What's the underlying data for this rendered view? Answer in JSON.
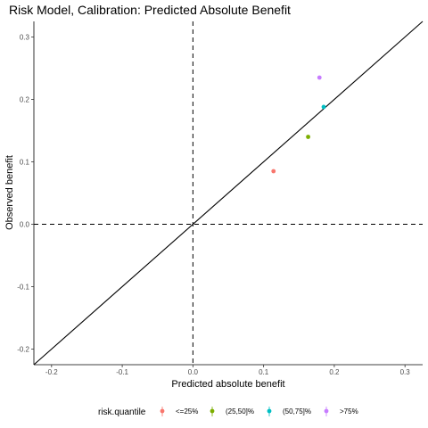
{
  "chart_data": {
    "type": "scatter",
    "title": "Risk Model, Calibration: Predicted Absolute Benefit",
    "xlabel": "Predicted absolute benefit",
    "ylabel": "Observed benefit",
    "xlim": [
      -0.225,
      0.325
    ],
    "ylim": [
      -0.225,
      0.325
    ],
    "x_ticks": [
      -0.2,
      -0.1,
      0.0,
      0.1,
      0.2,
      0.3
    ],
    "x_tick_labels": [
      "-0.2",
      "-0.1",
      "0.0",
      "0.1",
      "0.2",
      "0.3"
    ],
    "y_ticks": [
      -0.2,
      -0.1,
      0.0,
      0.1,
      0.2,
      0.3
    ],
    "y_tick_labels": [
      "-0.2",
      "-0.1",
      "0.0",
      "0.1",
      "0.2",
      "0.3"
    ],
    "grid": false,
    "reference_lines": {
      "diagonal": "y = x",
      "horizontal_dashed_at_y": 0,
      "vertical_dashed_at_x": 0
    },
    "legend": {
      "title": "risk.quantile",
      "placement": "bottom"
    },
    "series": [
      {
        "name": "<=25%",
        "color": "#F8766D",
        "x": [
          0.114
        ],
        "y": [
          0.085
        ]
      },
      {
        "name": "(25,50]%",
        "color": "#7CAE00",
        "x": [
          0.163
        ],
        "y": [
          0.14
        ]
      },
      {
        "name": "(50,75]%",
        "color": "#00BFC4",
        "x": [
          0.185
        ],
        "y": [
          0.188
        ]
      },
      {
        "name": ">75%",
        "color": "#C77CFF",
        "x": [
          0.179
        ],
        "y": [
          0.235
        ]
      }
    ]
  }
}
